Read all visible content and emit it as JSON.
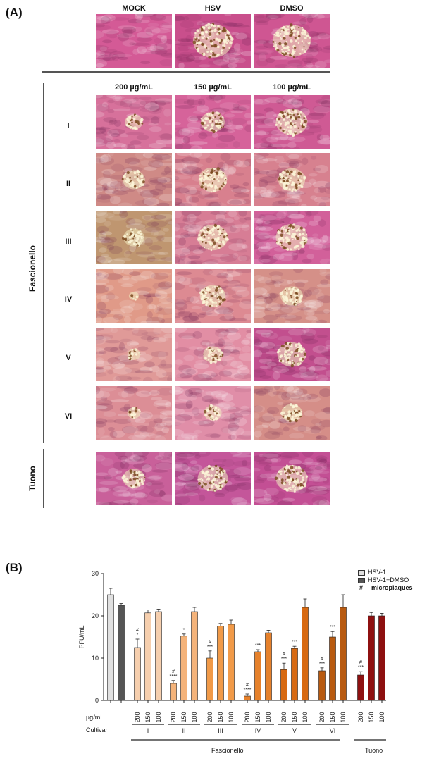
{
  "panelA": {
    "label": "(A)",
    "top_headers": [
      "MOCK",
      "HSV",
      "DMSO"
    ],
    "conc_headers": [
      "200 µg/mL",
      "150 µg/mL",
      "100 µg/mL"
    ],
    "row_labels": [
      "I",
      "II",
      "III",
      "IV",
      "V",
      "VI"
    ],
    "group_fascionello": "Fascionello",
    "group_tuono": "Tuono",
    "images": {
      "top": [
        {
          "bg": "#d45a96",
          "plaque": 0
        },
        {
          "bg": "#c94f8c",
          "plaque": 1.0
        },
        {
          "bg": "#cf5692",
          "plaque": 0.95
        }
      ],
      "rows": [
        [
          {
            "bg": "#d7719b",
            "plaque": 0.3
          },
          {
            "bg": "#d6639a",
            "plaque": 0.5
          },
          {
            "bg": "#cf5a94",
            "plaque": 0.75
          }
        ],
        [
          {
            "bg": "#cf8a86",
            "plaque": 0.45
          },
          {
            "bg": "#d8808e",
            "plaque": 0.65
          },
          {
            "bg": "#d7818f",
            "plaque": 0.6
          }
        ],
        [
          {
            "bg": "#bf9670",
            "plaque": 0.4
          },
          {
            "bg": "#d77d95",
            "plaque": 0.7
          },
          {
            "bg": "#d2609a",
            "plaque": 0.75
          }
        ],
        [
          {
            "bg": "#e09a88",
            "plaque": 0.05
          },
          {
            "bg": "#dd8a92",
            "plaque": 0.55
          },
          {
            "bg": "#d59088",
            "plaque": 0.45
          }
        ],
        [
          {
            "bg": "#e09a98",
            "plaque": 0.15
          },
          {
            "bg": "#e28ea4",
            "plaque": 0.35
          },
          {
            "bg": "#c24f8e",
            "plaque": 0.65
          }
        ],
        [
          {
            "bg": "#dc8e96",
            "plaque": 0.15
          },
          {
            "bg": "#e08ea8",
            "plaque": 0.3
          },
          {
            "bg": "#d58e88",
            "plaque": 0.4
          }
        ]
      ],
      "tuono": [
        {
          "bg": "#c9609a",
          "plaque": 0.45
        },
        {
          "bg": "#c4569a",
          "plaque": 0.7
        },
        {
          "bg": "#c34f94",
          "plaque": 0.75
        }
      ]
    }
  },
  "panelB": {
    "label": "(B)",
    "legend": {
      "hsv1": "HSV-1",
      "hsv1dmso": "HSV-1+DMSO",
      "hash": "#",
      "micro": "microplaques"
    },
    "row_label_conc": "µg/mL",
    "row_label_cultivar": "Cultivar",
    "group_fascionello": "Fascionello",
    "group_tuono": "Tuono"
  },
  "chart_data": {
    "type": "bar",
    "ylabel": "PFU/mL",
    "ylim": [
      0,
      30
    ],
    "yticks": [
      "0",
      "10",
      "20",
      "30"
    ],
    "controls": [
      {
        "name": "HSV-1",
        "value": 25,
        "err": 1.5,
        "color": "#e0e0e0"
      },
      {
        "name": "HSV-1+DMSO",
        "value": 22.5,
        "err": 0.4,
        "color": "#555555"
      }
    ],
    "groups": [
      {
        "cultivar": "I",
        "color": "#f6cfae",
        "concentrations": [
          "200",
          "150",
          "100"
        ],
        "values": [
          12.5,
          20.7,
          21
        ],
        "errors": [
          2,
          0.7,
          0.6
        ],
        "marks": [
          "#\n*",
          "",
          ""
        ]
      },
      {
        "cultivar": "II",
        "color": "#f4b37a",
        "concentrations": [
          "200",
          "150",
          "100"
        ],
        "values": [
          4,
          15.2,
          21
        ],
        "errors": [
          0.7,
          0.5,
          1
        ],
        "marks": [
          "#\n****",
          "*",
          ""
        ]
      },
      {
        "cultivar": "III",
        "color": "#f19a48",
        "concentrations": [
          "200",
          "150",
          "100"
        ],
        "values": [
          10,
          17.6,
          18
        ],
        "errors": [
          1.7,
          0.6,
          1
        ],
        "marks": [
          "#\n***",
          "",
          ""
        ]
      },
      {
        "cultivar": "IV",
        "color": "#e6812b",
        "concentrations": [
          "200",
          "150",
          "100"
        ],
        "values": [
          1,
          11.5,
          16
        ],
        "errors": [
          0.5,
          0.5,
          0.6
        ],
        "marks": [
          "#\n****",
          "***",
          ""
        ]
      },
      {
        "cultivar": "V",
        "color": "#d86a12",
        "concentrations": [
          "200",
          "150",
          "100"
        ],
        "values": [
          7.3,
          12.3,
          22
        ],
        "errors": [
          1.5,
          0.5,
          2
        ],
        "marks": [
          "#\n***",
          "***",
          ""
        ]
      },
      {
        "cultivar": "VI",
        "color": "#b85a10",
        "concentrations": [
          "200",
          "150",
          "100"
        ],
        "values": [
          7,
          15,
          22
        ],
        "errors": [
          0.7,
          1.3,
          3
        ],
        "marks": [
          "#\n***",
          "***",
          ""
        ]
      },
      {
        "cultivar": "",
        "color": "#8e1010",
        "concentrations": [
          "200",
          "150",
          "100"
        ],
        "values": [
          6,
          20,
          20
        ],
        "errors": [
          0.8,
          0.8,
          0.6
        ],
        "marks": [
          "#\n***",
          "",
          ""
        ]
      }
    ]
  }
}
